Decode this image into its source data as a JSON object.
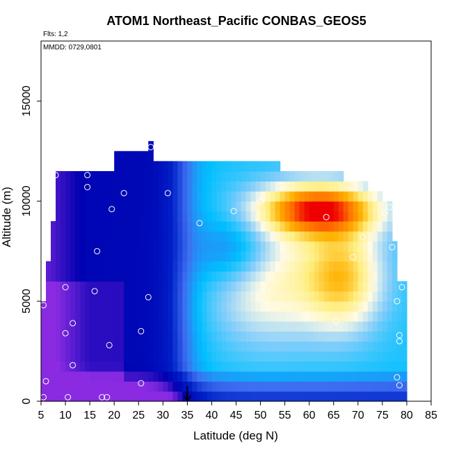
{
  "chart_data": {
    "type": "heatmap",
    "title": "ATOM1 Northeast_Pacific CONBAS_GEOS5",
    "annotation_flights": "Flts: 1,2",
    "annotation_dates": "MMDD: 0729,0801",
    "xlabel": "Latitude (deg N)",
    "ylabel": "Altitude (m)",
    "xlim": [
      5,
      85
    ],
    "ylim": [
      0,
      18000
    ],
    "xticks": [
      5,
      10,
      15,
      20,
      25,
      30,
      35,
      40,
      45,
      50,
      55,
      60,
      65,
      70,
      75,
      80,
      85
    ],
    "yticks": [
      0,
      5000,
      10000,
      15000
    ],
    "grid": false,
    "legend": "none",
    "arrow_marker_lat": 35,
    "colormap": [
      "#8a2be2",
      "#0000b0",
      "#0020c8",
      "#3d6ef0",
      "#00bfff",
      "#87cefa",
      "#fffbe6",
      "#ffee80",
      "#ffb000",
      "#ff7000",
      "#ee0000"
    ],
    "sample_points": [
      {
        "lat": 5.5,
        "alt": 200
      },
      {
        "lat": 6.0,
        "alt": 1000
      },
      {
        "lat": 5.5,
        "alt": 4800
      },
      {
        "lat": 10.5,
        "alt": 200
      },
      {
        "lat": 11.5,
        "alt": 1800
      },
      {
        "lat": 10.0,
        "alt": 3400
      },
      {
        "lat": 11.5,
        "alt": 3900
      },
      {
        "lat": 10.0,
        "alt": 5700
      },
      {
        "lat": 8.0,
        "alt": 11300
      },
      {
        "lat": 14.5,
        "alt": 11300
      },
      {
        "lat": 14.5,
        "alt": 10700
      },
      {
        "lat": 17.5,
        "alt": 200
      },
      {
        "lat": 18.5,
        "alt": 200
      },
      {
        "lat": 16.0,
        "alt": 5500
      },
      {
        "lat": 16.5,
        "alt": 7500
      },
      {
        "lat": 19.0,
        "alt": 2800
      },
      {
        "lat": 19.5,
        "alt": 9600
      },
      {
        "lat": 22.0,
        "alt": 10400
      },
      {
        "lat": 25.5,
        "alt": 900
      },
      {
        "lat": 25.5,
        "alt": 3500
      },
      {
        "lat": 27.0,
        "alt": 5200
      },
      {
        "lat": 27.5,
        "alt": 12700
      },
      {
        "lat": 31.0,
        "alt": 10400
      },
      {
        "lat": 37.5,
        "alt": 8900
      },
      {
        "lat": 44.5,
        "alt": 9500
      },
      {
        "lat": 50.0,
        "alt": 10000
      },
      {
        "lat": 63.5,
        "alt": 9200
      },
      {
        "lat": 65.5,
        "alt": 4000
      },
      {
        "lat": 69.0,
        "alt": 7200
      },
      {
        "lat": 71.0,
        "alt": 8200
      },
      {
        "lat": 75.5,
        "alt": 9400
      },
      {
        "lat": 76.5,
        "alt": 9700
      },
      {
        "lat": 77.0,
        "alt": 7700
      },
      {
        "lat": 78.0,
        "alt": 5000
      },
      {
        "lat": 78.5,
        "alt": 3000
      },
      {
        "lat": 79.0,
        "alt": 5700
      },
      {
        "lat": 78.5,
        "alt": 3300
      },
      {
        "lat": 78.0,
        "alt": 1200
      },
      {
        "lat": 78.5,
        "alt": 800
      }
    ]
  }
}
